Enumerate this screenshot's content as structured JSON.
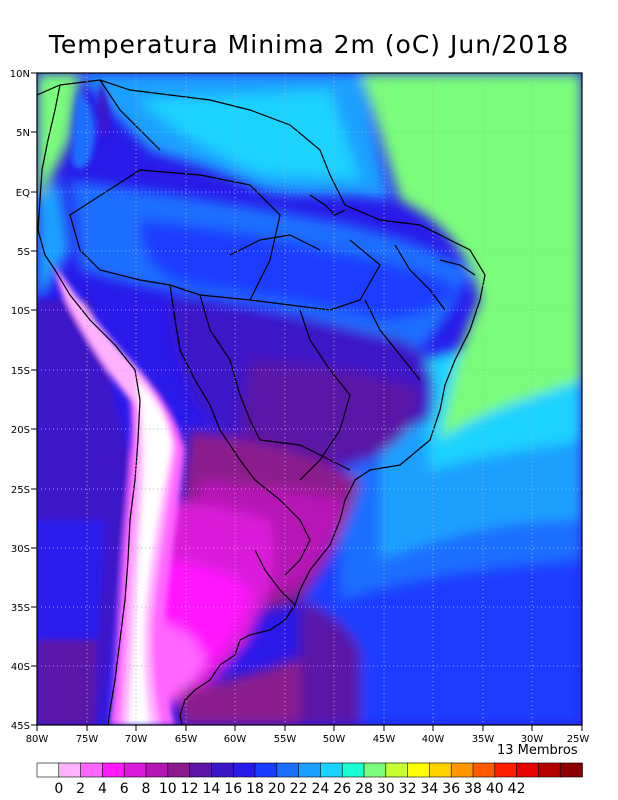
{
  "title": "Temperatura Minima 2m (oC) Jun/2018",
  "ensemble_label": "13 Membros",
  "lat_labels": [
    "10N",
    "5N",
    "EQ",
    "5S",
    "10S",
    "15S",
    "20S",
    "25S",
    "30S",
    "35S",
    "40S",
    "45S"
  ],
  "lon_labels": [
    "80W",
    "75W",
    "70W",
    "65W",
    "60W",
    "55W",
    "50W",
    "45W",
    "40W",
    "35W",
    "30W",
    "25W"
  ],
  "colorbar": {
    "labels": [
      "0",
      "2",
      "4",
      "6",
      "8",
      "10",
      "12",
      "14",
      "16",
      "18",
      "20",
      "22",
      "24",
      "26",
      "28",
      "30",
      "32",
      "34",
      "36",
      "38",
      "40",
      "42"
    ],
    "colors": [
      "#ffffff",
      "#ffb3ff",
      "#ff66ff",
      "#ff19ff",
      "#d91ad9",
      "#b515b5",
      "#8c1a8c",
      "#5a14a6",
      "#3c14c8",
      "#2a1aea",
      "#1a3cff",
      "#1a6eff",
      "#1aa0ff",
      "#1ad2ff",
      "#1affd2",
      "#7cfc7c",
      "#c8ff32",
      "#ffff00",
      "#ffd200",
      "#ff9600",
      "#ff5a00",
      "#ff1e00",
      "#e60000",
      "#b40000",
      "#8c0000"
    ]
  },
  "colors": {
    "ocean_warm": "#7cfc7c",
    "andes_snow": "#ffffff",
    "grid": "#b0b0b0"
  }
}
